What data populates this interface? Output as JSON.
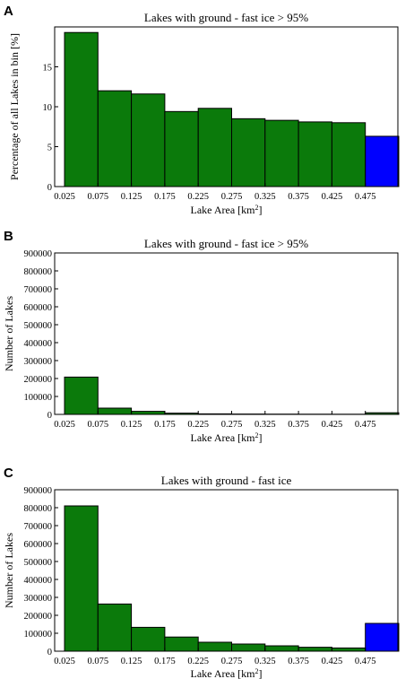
{
  "colors": {
    "green": "#0b7a0b",
    "blue": "#0000ff"
  },
  "chart_data": [
    {
      "panel": "A",
      "type": "bar",
      "title": "Lakes with ground - fast ice > 95%",
      "xlabel": "Lake Area [km",
      "xlabel_sup": "2",
      "xlabel_end": "]",
      "ylabel": "Percentage of all Lakes in bin [%]",
      "categories": [
        "0.025",
        "0.075",
        "0.125",
        "0.175",
        "0.225",
        "0.275",
        "0.325",
        "0.375",
        "0.425",
        "0.475"
      ],
      "values": [
        19.3,
        12.0,
        11.6,
        9.4,
        9.8,
        8.5,
        8.3,
        8.1,
        8.0,
        6.3
      ],
      "ylim": [
        0,
        20
      ],
      "yticks": [
        0,
        5,
        10,
        15
      ],
      "ytick_labels": [
        "0",
        "5",
        "10",
        "15"
      ],
      "last_bar_color": "blue"
    },
    {
      "panel": "B",
      "type": "bar",
      "title": "Lakes with ground - fast ice > 95%",
      "xlabel": "Lake Area [km",
      "xlabel_sup": "2",
      "xlabel_end": "]",
      "ylabel": "Number of Lakes",
      "categories": [
        "0.025",
        "0.075",
        "0.125",
        "0.175",
        "0.225",
        "0.275",
        "0.325",
        "0.375",
        "0.425",
        "0.475"
      ],
      "values": [
        208000,
        35000,
        17000,
        7000,
        3000,
        2000,
        1500,
        1200,
        1000,
        9000
      ],
      "ylim": [
        0,
        900000
      ],
      "yticks": [
        0,
        100000,
        200000,
        300000,
        400000,
        500000,
        600000,
        700000,
        800000,
        900000
      ],
      "ytick_labels": [
        "0",
        "100000",
        "200000",
        "300000",
        "400000",
        "500000",
        "600000",
        "700000",
        "800000",
        "900000"
      ],
      "last_bar_color": "green"
    },
    {
      "panel": "C",
      "type": "bar",
      "title": "Lakes with ground - fast ice",
      "xlabel": "Lake Area [km",
      "xlabel_sup": "2",
      "xlabel_end": "]",
      "ylabel": "Number of Lakes",
      "categories": [
        "0.025",
        "0.075",
        "0.125",
        "0.175",
        "0.225",
        "0.275",
        "0.325",
        "0.375",
        "0.425",
        "0.475"
      ],
      "values": [
        810000,
        263000,
        133000,
        79000,
        50000,
        40000,
        30000,
        22000,
        18000,
        155000
      ],
      "ylim": [
        0,
        900000
      ],
      "yticks": [
        0,
        100000,
        200000,
        300000,
        400000,
        500000,
        600000,
        700000,
        800000,
        900000
      ],
      "ytick_labels": [
        "0",
        "100000",
        "200000",
        "300000",
        "400000",
        "500000",
        "600000",
        "700000",
        "800000",
        "900000"
      ],
      "last_bar_color": "blue"
    }
  ]
}
